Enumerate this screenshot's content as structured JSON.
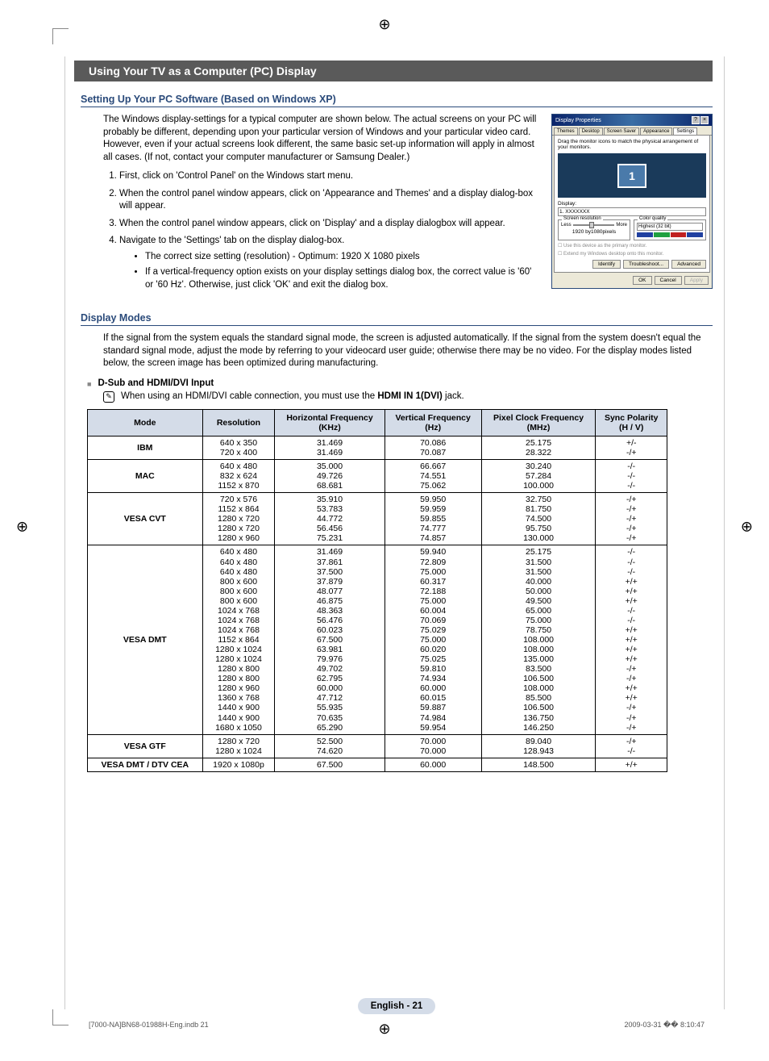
{
  "section_title": "Using Your TV as a Computer (PC) Display",
  "sub1_title": "Setting Up Your PC Software (Based on Windows XP)",
  "sub1_intro": "The Windows display-settings for a typical computer are shown below. The actual screens on your PC will probably be different, depending upon your particular version of Windows and your particular video card. However, even if your actual screens look different, the same basic set-up information will apply in almost all cases. (If not, contact your computer manufacturer or Samsung Dealer.)",
  "steps": [
    "First, click on 'Control Panel' on the Windows start menu.",
    "When the control panel window appears, click on 'Appearance and Themes' and a display dialog-box will appear.",
    "When the control panel window appears, click on 'Display' and a display dialogbox will appear.",
    "Navigate to the 'Settings' tab on the display dialog-box."
  ],
  "step_bullets": [
    "The correct size setting (resolution) - Optimum: 1920 X 1080 pixels",
    "If a vertical-frequency option exists on your display settings dialog box, the correct value is '60' or '60 Hz'. Otherwise, just click 'OK' and exit the dialog box."
  ],
  "dialog": {
    "title": "Display Properties",
    "tabs": [
      "Themes",
      "Desktop",
      "Screen Saver",
      "Appearance",
      "Settings"
    ],
    "active_tab": 4,
    "instruction": "Drag the monitor icons to match the physical arrangement of your monitors.",
    "display_label": "Display:",
    "display_value": "1. XXXXXXX",
    "res_legend": "Screen resolution",
    "res_less": "Less",
    "res_more": "More",
    "res_value": "1920 by1080pixels",
    "quality_legend": "Color quality",
    "quality_value": "Highest (32 bit)",
    "quality_colors": [
      "#2040a0",
      "#20a040",
      "#c02020",
      "#2040a0"
    ],
    "check1": "Use this device as the primary monitor.",
    "check2": "Extend my Windows desktop onto this monitor.",
    "btn_identify": "Identify",
    "btn_troubleshoot": "Troubleshoot...",
    "btn_advanced": "Advanced",
    "btn_ok": "OK",
    "btn_cancel": "Cancel",
    "btn_apply": "Apply"
  },
  "sub2_title": "Display Modes",
  "sub2_intro": "If the signal from the system equals the standard signal mode, the screen is adjusted automatically. If the signal from the system doesn't equal the standard signal mode, adjust the mode by referring to your videocard user guide; otherwise there may be no video. For the display modes listed below, the screen image has been optimized during manufacturing.",
  "input_heading": "D-Sub and HDMI/DVI Input",
  "input_note_prefix": "When using an HDMI/DVI cable connection, you must use the ",
  "input_note_bold": "HDMI IN 1(DVI)",
  "input_note_suffix": " jack.",
  "table": {
    "columns": [
      "Mode",
      "Resolution",
      "Horizontal Frequency\n(KHz)",
      "Vertical Frequency\n(Hz)",
      "Pixel Clock Frequency\n(MHz)",
      "Sync Polarity\n(H / V)"
    ],
    "rows": [
      {
        "mode": "IBM",
        "resolution": "640 x 350\n720 x 400",
        "hf": "31.469\n31.469",
        "vf": "70.086\n70.087",
        "pc": "25.175\n28.322",
        "sp": "+/-\n-/+"
      },
      {
        "mode": "MAC",
        "resolution": "640 x 480\n832 x 624\n1152 x 870",
        "hf": "35.000\n49.726\n68.681",
        "vf": "66.667\n74.551\n75.062",
        "pc": "30.240\n57.284\n100.000",
        "sp": "-/-\n-/-\n-/-"
      },
      {
        "mode": "VESA CVT",
        "resolution": "720 x 576\n1152 x 864\n1280 x 720\n1280 x 720\n1280 x 960",
        "hf": "35.910\n53.783\n44.772\n56.456\n75.231",
        "vf": "59.950\n59.959\n59.855\n74.777\n74.857",
        "pc": "32.750\n81.750\n74.500\n95.750\n130.000",
        "sp": "-/+\n-/+\n-/+\n-/+\n-/+"
      },
      {
        "mode": "VESA DMT",
        "resolution": "640 x 480\n640 x 480\n640 x 480\n800 x 600\n800 x 600\n800 x 600\n1024 x 768\n1024 x 768\n1024 x 768\n1152 x 864\n1280 x 1024\n1280 x 1024\n1280 x 800\n1280 x 800\n1280 x 960\n1360 x 768\n1440 x 900\n1440 x 900\n1680 x 1050",
        "hf": "31.469\n37.861\n37.500\n37.879\n48.077\n46.875\n48.363\n56.476\n60.023\n67.500\n63.981\n79.976\n49.702\n62.795\n60.000\n47.712\n55.935\n70.635\n65.290",
        "vf": "59.940\n72.809\n75.000\n60.317\n72.188\n75.000\n60.004\n70.069\n75.029\n75.000\n60.020\n75.025\n59.810\n74.934\n60.000\n60.015\n59.887\n74.984\n59.954",
        "pc": "25.175\n31.500\n31.500\n40.000\n50.000\n49.500\n65.000\n75.000\n78.750\n108.000\n108.000\n135.000\n83.500\n106.500\n108.000\n85.500\n106.500\n136.750\n146.250",
        "sp": "-/-\n-/-\n-/-\n+/+\n+/+\n+/+\n-/-\n-/-\n+/+\n+/+\n+/+\n+/+\n-/+\n-/+\n+/+\n+/+\n-/+\n-/+\n-/+"
      },
      {
        "mode": "VESA GTF",
        "resolution": "1280 x 720\n1280 x 1024",
        "hf": "52.500\n74.620",
        "vf": "70.000\n70.000",
        "pc": "89.040\n128.943",
        "sp": "-/+\n-/-"
      },
      {
        "mode": "VESA DMT / DTV CEA",
        "resolution": "1920 x 1080p",
        "hf": "67.500",
        "vf": "60.000",
        "pc": "148.500",
        "sp": "+/+"
      }
    ]
  },
  "page_label": "English - 21",
  "footer_left": "[7000-NA]BN68-01988H-Eng.indb   21",
  "footer_right": "2009-03-31   �� 8:10:47"
}
